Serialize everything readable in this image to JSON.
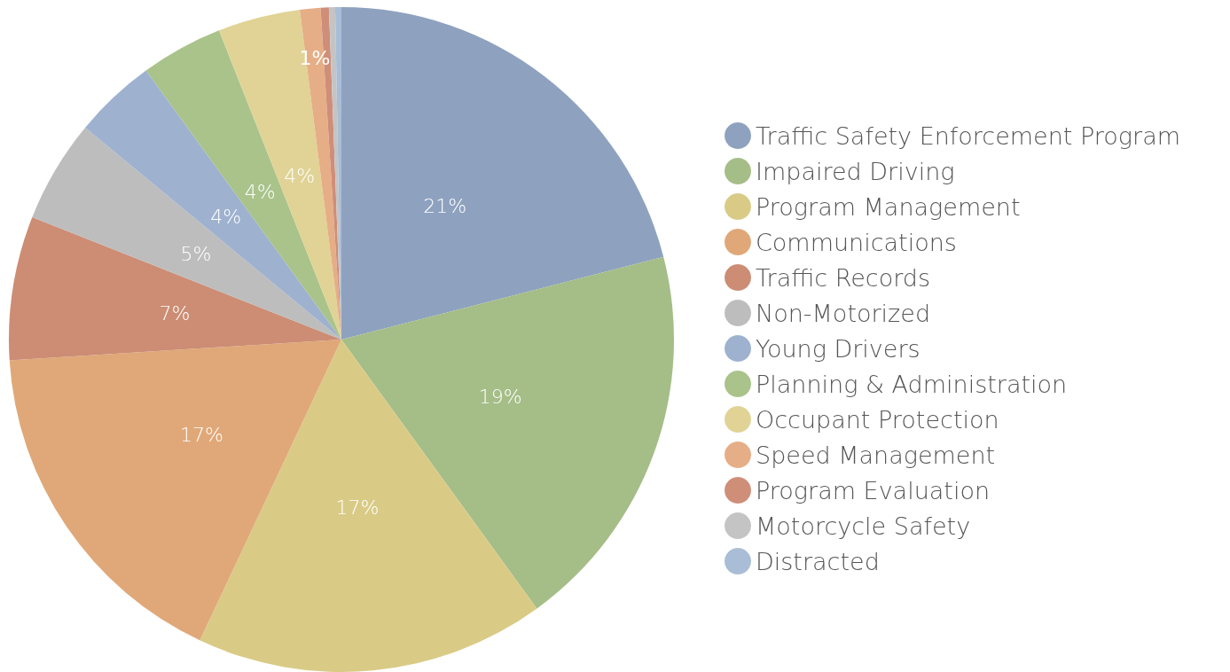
{
  "chart_data": {
    "type": "pie",
    "categories": [
      "Traffic Safety Enforcement Program",
      "Impaired Driving",
      "Program Management",
      "Communications",
      "Traffic Records",
      "Non-Motorized",
      "Young Drivers",
      "Planning & Administration",
      "Occupant Protection",
      "Speed Management",
      "Program Evaluation",
      "Motorcycle Safety",
      "Distracted"
    ],
    "values": [
      21,
      19,
      17,
      17,
      7,
      5,
      4,
      4,
      4,
      1,
      0.4,
      0.3,
      0.3
    ],
    "value_labels": [
      "21%",
      "19%",
      "17%",
      "17%",
      "7%",
      "5%",
      "4%",
      "4%",
      "4%",
      "1%",
      null,
      null,
      null
    ],
    "colors": [
      "#8ea2bf",
      "#a5bd87",
      "#d9cb86",
      "#e0a878",
      "#cc8d74",
      "#bdbdbd",
      "#9eb1cf",
      "#a9c38b",
      "#e0d395",
      "#e6ae86",
      "#cf8e78",
      "#c4c4c4",
      "#a9bdd6"
    ],
    "legend": "right"
  }
}
